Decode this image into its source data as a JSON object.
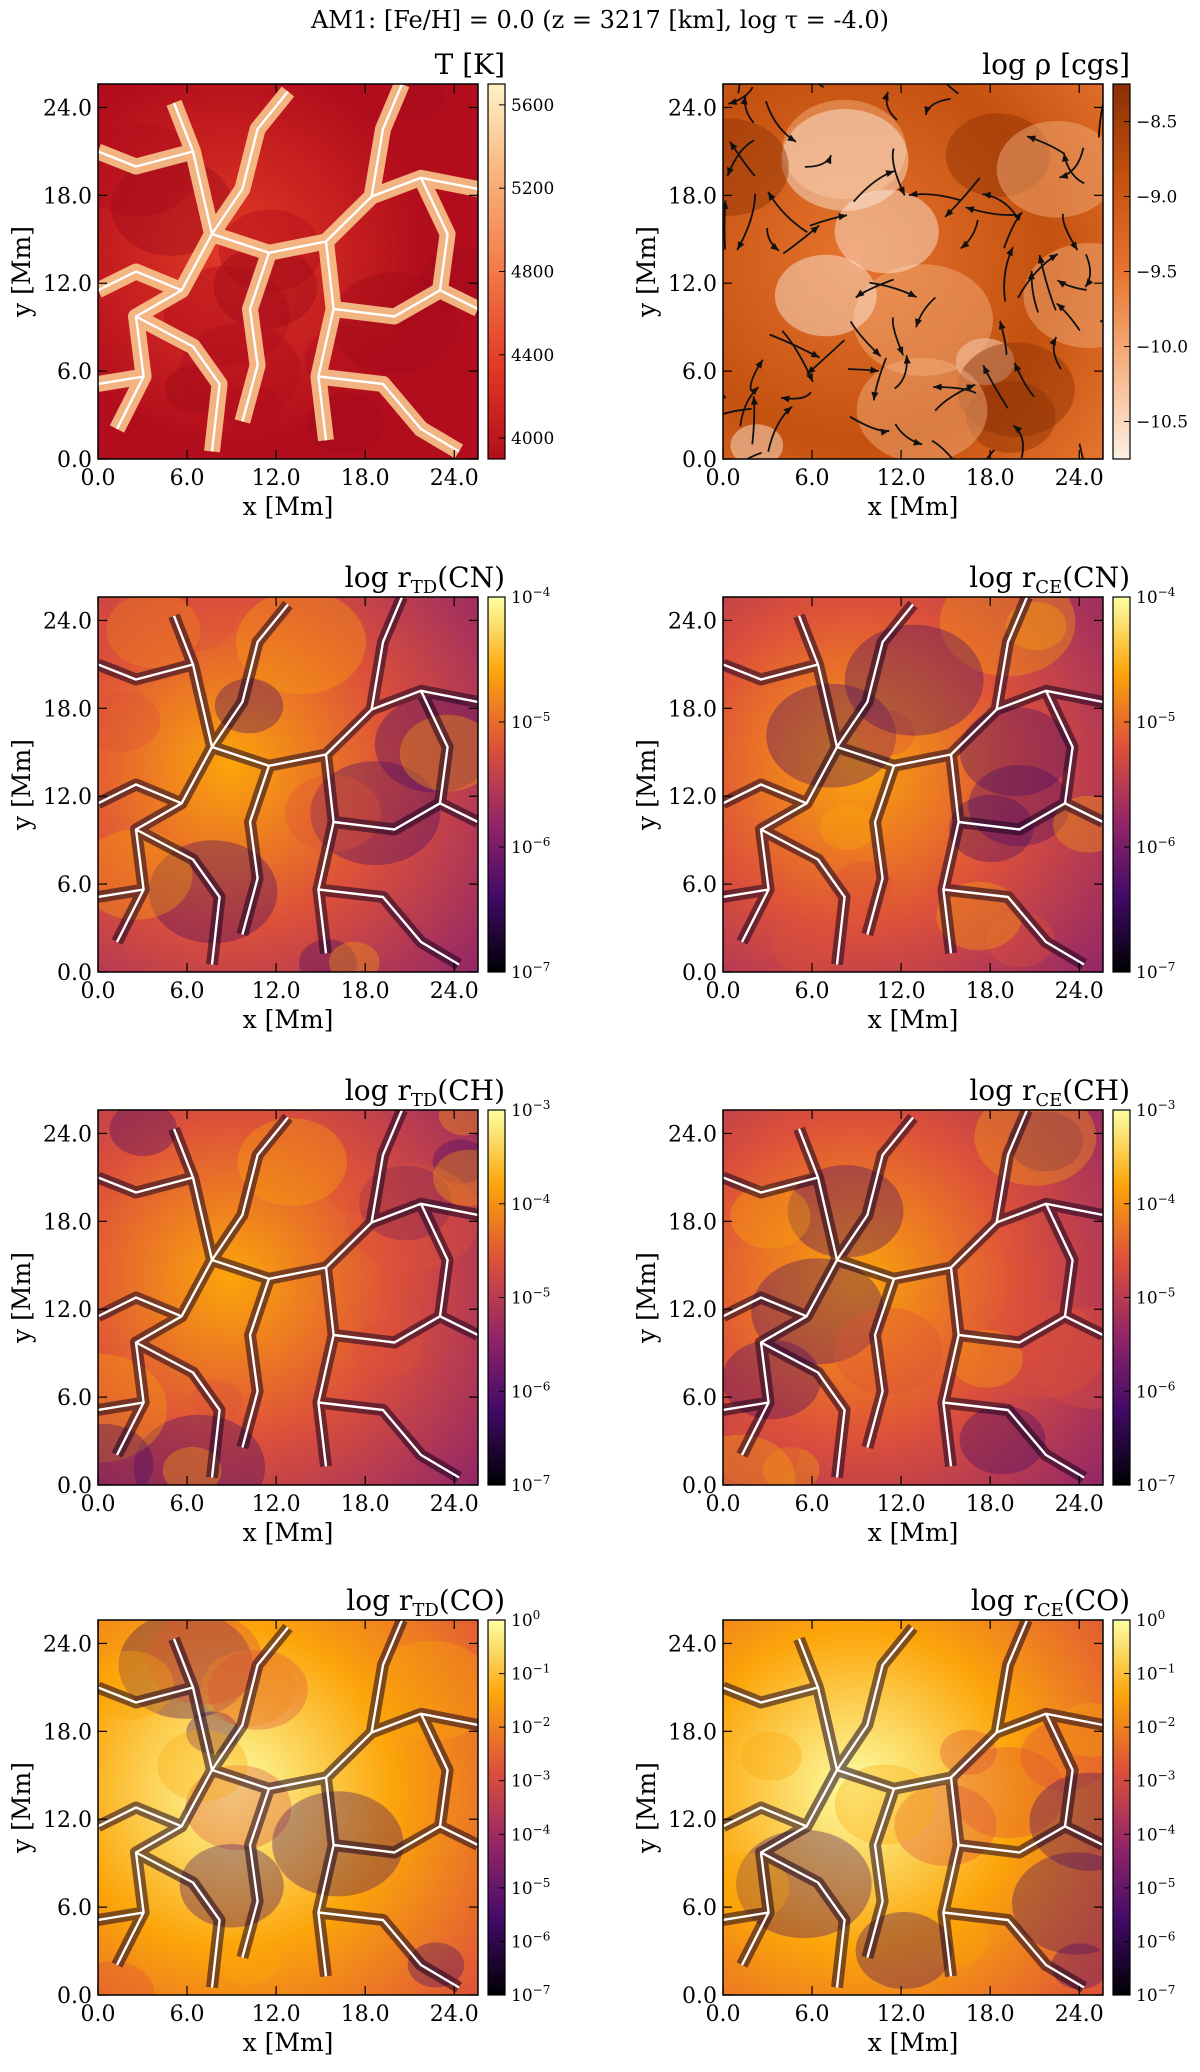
{
  "figure_title": "AM1: [Fe/H] = 0.0 (z = 3217 [km], log τ = -4.0)",
  "chart_data": [
    {
      "type": "heatmap",
      "title": "T [K]",
      "title_parts": {
        "main": "T [K]",
        "sub": "",
        "tail": ""
      },
      "xlabel": "x [Mm]",
      "ylabel": "y [Mm]",
      "xlim": [
        0,
        25.6
      ],
      "ylim": [
        0,
        25.6
      ],
      "xticks": [
        "0.0",
        "6.0",
        "12.0",
        "18.0",
        "24.0"
      ],
      "yticks": [
        "0.0",
        "6.0",
        "12.0",
        "18.0",
        "24.0"
      ],
      "colorbar": {
        "scale": "linear",
        "range": [
          3900,
          5700
        ],
        "ticks": [
          4000,
          4400,
          4800,
          5200,
          5600
        ],
        "tick_labels": [
          "4000",
          "4400",
          "4800",
          "5200",
          "5600"
        ]
      },
      "colormap": "red-to-cream",
      "overlay": "temperature contours",
      "colors": [
        "#b20d1c",
        "#e23a25",
        "#f2794a",
        "#f8b27a",
        "#fff2c6"
      ]
    },
    {
      "type": "heatmap",
      "title": "log ρ [cgs]",
      "title_parts": {
        "main": "log ρ [cgs]",
        "sub": "",
        "tail": ""
      },
      "xlabel": "x [Mm]",
      "ylabel": "y [Mm]",
      "xlim": [
        0,
        25.6
      ],
      "ylim": [
        0,
        25.6
      ],
      "xticks": [
        "0.0",
        "6.0",
        "12.0",
        "18.0",
        "24.0"
      ],
      "yticks": [
        "0.0",
        "6.0",
        "12.0",
        "18.0",
        "24.0"
      ],
      "colorbar": {
        "scale": "linear",
        "range": [
          -10.75,
          -8.25
        ],
        "ticks": [
          -10.5,
          -10.0,
          -9.5,
          -9.0,
          -8.5
        ],
        "tick_labels": [
          "−10.5",
          "−10.0",
          "−9.5",
          "−9.0",
          "−8.5"
        ]
      },
      "colormap": "cream-to-brown",
      "overlay": "velocity streamlines",
      "colors": [
        "#fdf0e3",
        "#f6b383",
        "#e6742e",
        "#c4510f",
        "#8b3005"
      ]
    },
    {
      "type": "heatmap",
      "title": "log r_TD(CN)",
      "title_parts": {
        "main": "log r",
        "sub": "TD",
        "tail": "(CN)"
      },
      "xlabel": "x [Mm]",
      "ylabel": "y [Mm]",
      "xlim": [
        0,
        25.6
      ],
      "ylim": [
        0,
        25.6
      ],
      "xticks": [
        "0.0",
        "6.0",
        "12.0",
        "18.0",
        "24.0"
      ],
      "yticks": [
        "0.0",
        "6.0",
        "12.0",
        "18.0",
        "24.0"
      ],
      "colorbar": {
        "scale": "log",
        "range": [
          -7,
          -4
        ],
        "ticks": [
          -7,
          -6,
          -5,
          -4
        ],
        "tick_labels": [
          "10^-7",
          "10^-6",
          "10^-5",
          "10^-4"
        ]
      },
      "colormap": "inferno",
      "overlay": "temperature contours",
      "colors": [
        "#000004",
        "#420a68",
        "#932667",
        "#dd513a",
        "#fca50a",
        "#fcffa4"
      ]
    },
    {
      "type": "heatmap",
      "title": "log r_CE(CN)",
      "title_parts": {
        "main": "log r",
        "sub": "CE",
        "tail": "(CN)"
      },
      "xlabel": "x [Mm]",
      "ylabel": "y [Mm]",
      "xlim": [
        0,
        25.6
      ],
      "ylim": [
        0,
        25.6
      ],
      "xticks": [
        "0.0",
        "6.0",
        "12.0",
        "18.0",
        "24.0"
      ],
      "yticks": [
        "0.0",
        "6.0",
        "12.0",
        "18.0",
        "24.0"
      ],
      "colorbar": {
        "scale": "log",
        "range": [
          -7,
          -4
        ],
        "ticks": [
          -7,
          -6,
          -5,
          -4
        ],
        "tick_labels": [
          "10^-7",
          "10^-6",
          "10^-5",
          "10^-4"
        ]
      },
      "colormap": "inferno",
      "overlay": "temperature contours",
      "colors": [
        "#000004",
        "#420a68",
        "#932667",
        "#dd513a",
        "#fca50a",
        "#fcffa4"
      ]
    },
    {
      "type": "heatmap",
      "title": "log r_TD(CH)",
      "title_parts": {
        "main": "log r",
        "sub": "TD",
        "tail": "(CH)"
      },
      "xlabel": "x [Mm]",
      "ylabel": "y [Mm]",
      "xlim": [
        0,
        25.6
      ],
      "ylim": [
        0,
        25.6
      ],
      "xticks": [
        "0.0",
        "6.0",
        "12.0",
        "18.0",
        "24.0"
      ],
      "yticks": [
        "0.0",
        "6.0",
        "12.0",
        "18.0",
        "24.0"
      ],
      "colorbar": {
        "scale": "log",
        "range": [
          -7,
          -3
        ],
        "ticks": [
          -7,
          -6,
          -5,
          -4,
          -3
        ],
        "tick_labels": [
          "10^-7",
          "10^-6",
          "10^-5",
          "10^-4",
          "10^-3"
        ]
      },
      "colormap": "inferno",
      "overlay": "temperature contours",
      "colors": [
        "#000004",
        "#420a68",
        "#932667",
        "#dd513a",
        "#fca50a",
        "#fcffa4"
      ]
    },
    {
      "type": "heatmap",
      "title": "log r_CE(CH)",
      "title_parts": {
        "main": "log r",
        "sub": "CE",
        "tail": "(CH)"
      },
      "xlabel": "x [Mm]",
      "ylabel": "y [Mm]",
      "xlim": [
        0,
        25.6
      ],
      "ylim": [
        0,
        25.6
      ],
      "xticks": [
        "0.0",
        "6.0",
        "12.0",
        "18.0",
        "24.0"
      ],
      "yticks": [
        "0.0",
        "6.0",
        "12.0",
        "18.0",
        "24.0"
      ],
      "colorbar": {
        "scale": "log",
        "range": [
          -7,
          -3
        ],
        "ticks": [
          -7,
          -6,
          -5,
          -4,
          -3
        ],
        "tick_labels": [
          "10^-7",
          "10^-6",
          "10^-5",
          "10^-4",
          "10^-3"
        ]
      },
      "colormap": "inferno",
      "overlay": "temperature contours",
      "colors": [
        "#000004",
        "#420a68",
        "#932667",
        "#dd513a",
        "#fca50a",
        "#fcffa4"
      ]
    },
    {
      "type": "heatmap",
      "title": "log r_TD(CO)",
      "title_parts": {
        "main": "log r",
        "sub": "TD",
        "tail": "(CO)"
      },
      "xlabel": "x [Mm]",
      "ylabel": "y [Mm]",
      "xlim": [
        0,
        25.6
      ],
      "ylim": [
        0,
        25.6
      ],
      "xticks": [
        "0.0",
        "6.0",
        "12.0",
        "18.0",
        "24.0"
      ],
      "yticks": [
        "0.0",
        "6.0",
        "12.0",
        "18.0",
        "24.0"
      ],
      "colorbar": {
        "scale": "log",
        "range": [
          -7,
          0
        ],
        "ticks": [
          -7,
          -6,
          -5,
          -4,
          -3,
          -2,
          -1,
          0
        ],
        "tick_labels": [
          "10^-7",
          "10^-6",
          "10^-5",
          "10^-4",
          "10^-3",
          "10^-2",
          "10^-1",
          "10^0"
        ]
      },
      "colormap": "inferno",
      "overlay": "temperature contours",
      "colors": [
        "#000004",
        "#420a68",
        "#932667",
        "#dd513a",
        "#fca50a",
        "#fcffa4"
      ]
    },
    {
      "type": "heatmap",
      "title": "log r_CE(CO)",
      "title_parts": {
        "main": "log r",
        "sub": "CE",
        "tail": "(CO)"
      },
      "xlabel": "x [Mm]",
      "ylabel": "y [Mm]",
      "xlim": [
        0,
        25.6
      ],
      "ylim": [
        0,
        25.6
      ],
      "xticks": [
        "0.0",
        "6.0",
        "12.0",
        "18.0",
        "24.0"
      ],
      "yticks": [
        "0.0",
        "6.0",
        "12.0",
        "18.0",
        "24.0"
      ],
      "colorbar": {
        "scale": "log",
        "range": [
          -7,
          0
        ],
        "ticks": [
          -7,
          -6,
          -5,
          -4,
          -3,
          -2,
          -1,
          0
        ],
        "tick_labels": [
          "10^-7",
          "10^-6",
          "10^-5",
          "10^-4",
          "10^-3",
          "10^-2",
          "10^-1",
          "10^0"
        ]
      },
      "colormap": "inferno",
      "overlay": "temperature contours",
      "colors": [
        "#000004",
        "#420a68",
        "#932667",
        "#dd513a",
        "#fca50a",
        "#fcffa4"
      ]
    }
  ]
}
